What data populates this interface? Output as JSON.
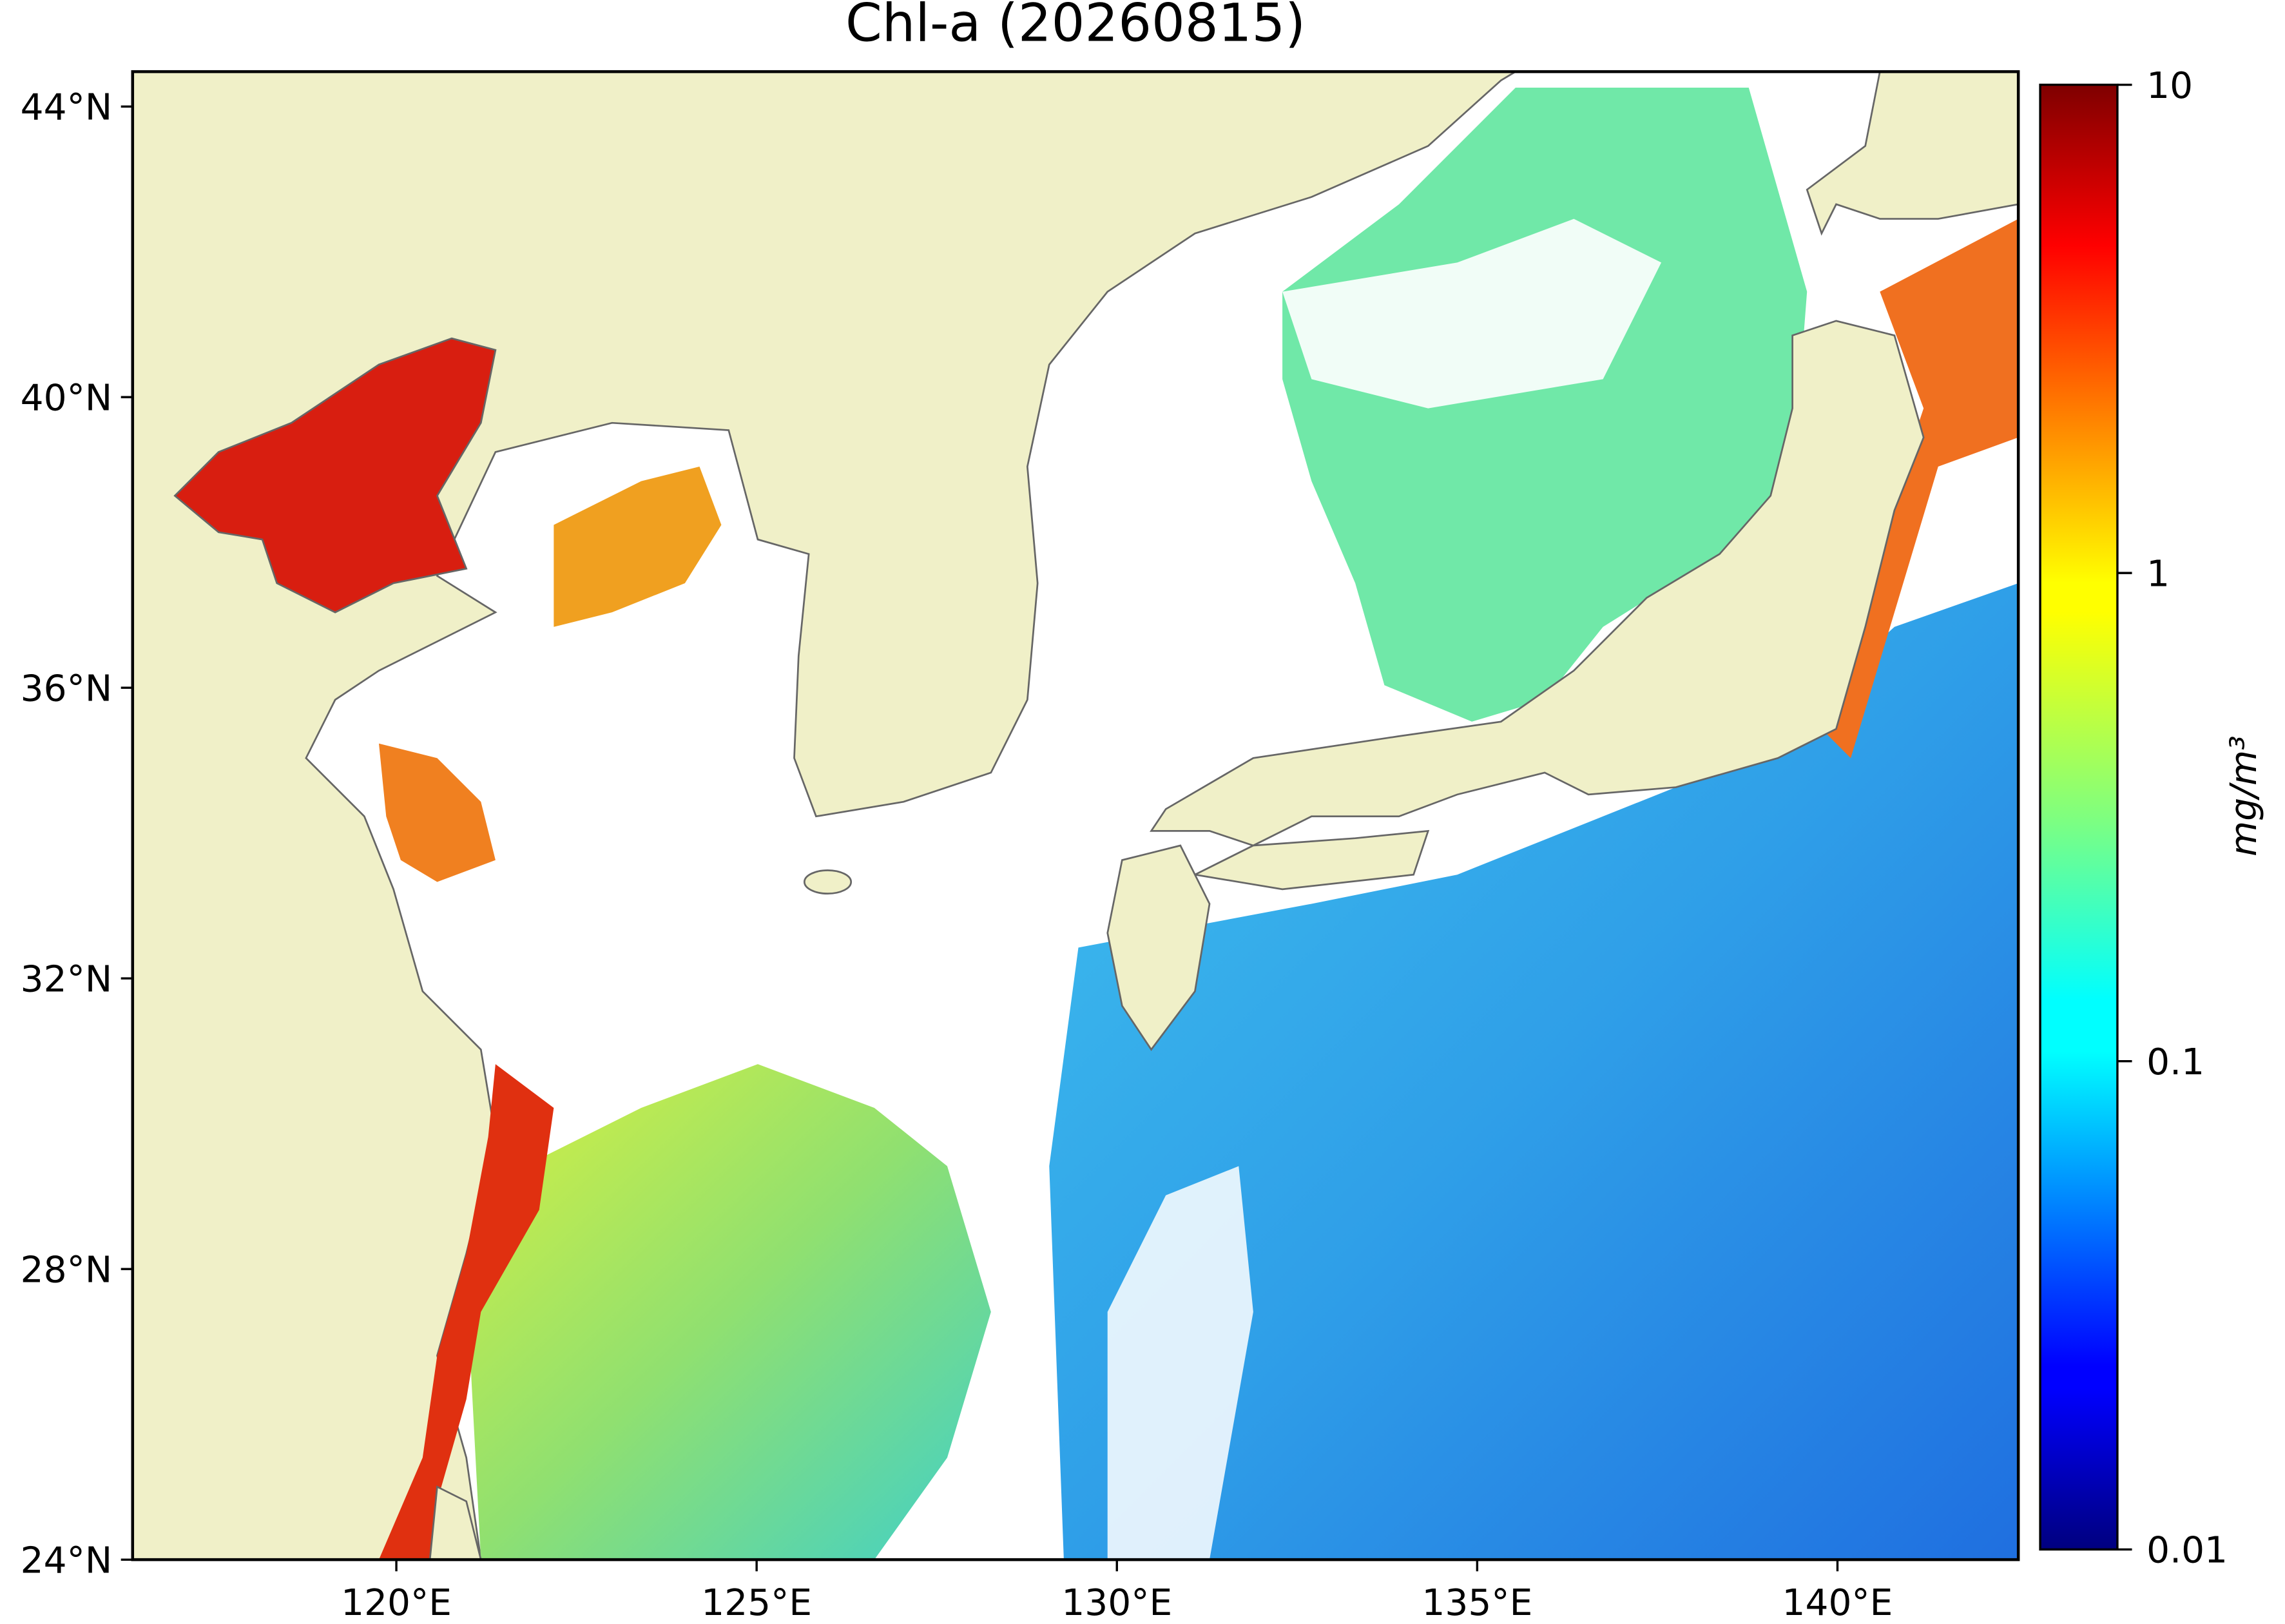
{
  "chart_data": {
    "type": "map",
    "title": "Chl-a (20260815)",
    "xlim": [
      116.34,
      142.51
    ],
    "ylim": [
      24,
      44.48
    ],
    "xticks": [
      {
        "value": 120,
        "label": "120°E"
      },
      {
        "value": 125,
        "label": "125°E"
      },
      {
        "value": 130,
        "label": "130°E"
      },
      {
        "value": 135,
        "label": "135°E"
      },
      {
        "value": 140,
        "label": "140°E"
      }
    ],
    "yticks": [
      {
        "value": 24,
        "label": "24°N"
      },
      {
        "value": 28,
        "label": "28°N"
      },
      {
        "value": 32,
        "label": "32°N"
      },
      {
        "value": 36,
        "label": "36°N"
      },
      {
        "value": 40,
        "label": "40°N"
      },
      {
        "value": 44,
        "label": "44°N"
      }
    ],
    "land_color": "#f0f0c8",
    "colorbar": {
      "label": "mg/m³",
      "scale": "log",
      "colormap": "jet",
      "lim": [
        0.01,
        10
      ],
      "ticks": [
        0.01,
        0.1,
        1,
        10
      ]
    }
  }
}
